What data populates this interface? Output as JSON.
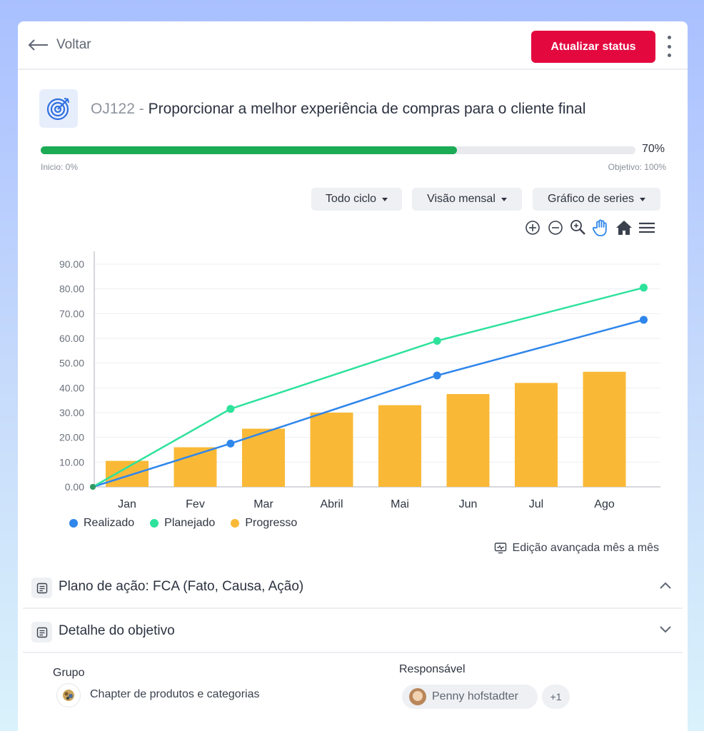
{
  "header": {
    "back_label": "Voltar",
    "update_button": "Atualizar status"
  },
  "objective": {
    "code": "OJ122",
    "separator": "-",
    "title": "Proporcionar a melhor experiência de compras para o cliente final",
    "progress": 70,
    "progress_label": "70%",
    "start_label": "Inicio: 0%",
    "target_label": "Objetivo: 100%"
  },
  "filters": {
    "cycle": "Todo ciclo",
    "view": "Visão mensal",
    "chart_type": "Gráfico de series"
  },
  "chart_data": {
    "type": "bar",
    "categories": [
      "Jan",
      "Fev",
      "Mar",
      "Abril",
      "Mai",
      "Jun",
      "Jul",
      "Ago"
    ],
    "ylim": [
      0,
      90
    ],
    "yticks": [
      "90.00",
      "80.00",
      "70.00",
      "60.00",
      "50.00",
      "40.00",
      "30.00",
      "20.00",
      "10.00",
      "0.00"
    ],
    "series": [
      {
        "name": "Realizado",
        "type": "line",
        "color": "#2f86eb",
        "points": [
          [
            0,
            0
          ],
          [
            2,
            17.5
          ],
          [
            5,
            45
          ],
          [
            8,
            67.5
          ]
        ]
      },
      {
        "name": "Planejado",
        "type": "line",
        "color": "#2ee29c",
        "points": [
          [
            0,
            0
          ],
          [
            2,
            31.5
          ],
          [
            5,
            59
          ],
          [
            8,
            80.5
          ]
        ]
      },
      {
        "name": "Progresso",
        "type": "bar",
        "color": "#f9b937",
        "values": [
          10.5,
          16,
          23.5,
          30,
          33,
          37.5,
          42,
          46.5
        ]
      }
    ],
    "legend": "bottom-left",
    "grid": true
  },
  "advanced_edit": "Edição avançada mês a mês",
  "sections": {
    "action_plan": "Plano de ação: FCA (Fato, Causa, Ação)",
    "detail": "Detalhe do objetivo"
  },
  "detail": {
    "group_label": "Grupo",
    "group_value": "Chapter de produtos e categorias",
    "owner_label": "Responsável",
    "owner_name": "Penny hofstadter",
    "owner_extra": "+1"
  }
}
